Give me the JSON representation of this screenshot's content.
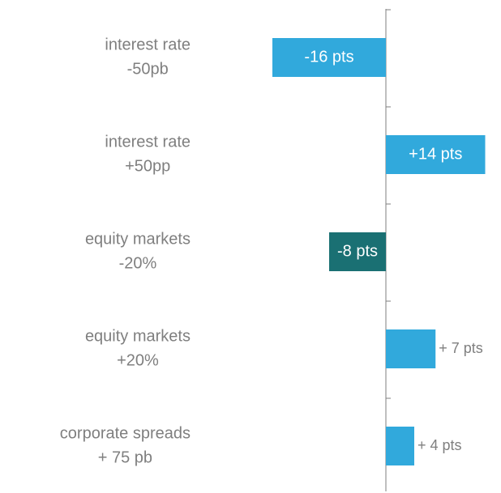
{
  "chart_data": {
    "type": "bar",
    "orientation": "horizontal",
    "categories": [
      [
        "interest rate",
        "-50pb"
      ],
      [
        "interest rate",
        "+50pp"
      ],
      [
        "equity markets",
        "-20%"
      ],
      [
        "equity markets",
        "+20%"
      ],
      [
        "corporate spreads",
        "+ 75 pb"
      ]
    ],
    "values": [
      -16,
      14,
      -8,
      7,
      4
    ],
    "value_labels": [
      "-16 pts",
      "+14 pts",
      "-8 pts",
      "+ 7 pts",
      "+ 4 pts"
    ],
    "colors": [
      "#31a9dc",
      "#31a9dc",
      "#1a7073",
      "#31a9dc",
      "#31a9dc"
    ],
    "xlim": [
      -20,
      16
    ]
  }
}
